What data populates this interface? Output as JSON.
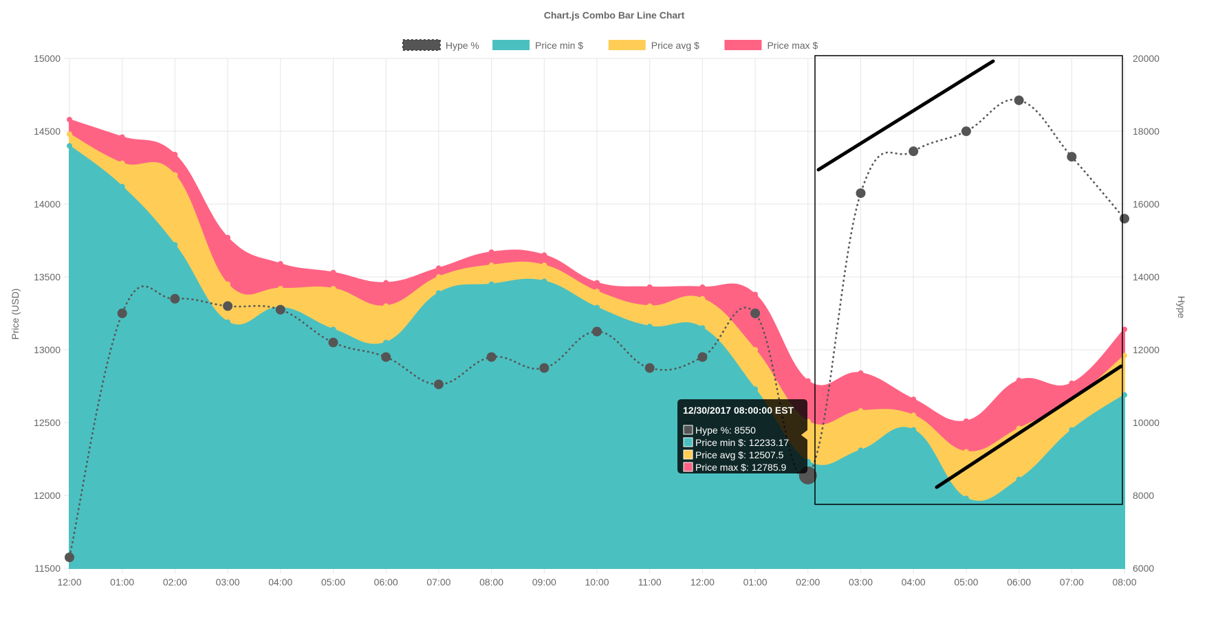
{
  "chart_data": {
    "type": "line",
    "title": "Chart.js Combo Bar Line Chart",
    "categories": [
      "12:00",
      "01:00",
      "02:00",
      "03:00",
      "04:00",
      "05:00",
      "06:00",
      "07:00",
      "08:00",
      "09:00",
      "10:00",
      "11:00",
      "12:00",
      "01:00",
      "02:00",
      "03:00",
      "04:00",
      "05:00",
      "06:00",
      "07:00",
      "08:00"
    ],
    "y_left": {
      "label": "Price (USD)",
      "min": 11500,
      "max": 15000,
      "step": 500
    },
    "y_right": {
      "label": "Hype",
      "min": 6000,
      "max": 20000,
      "step": 2000
    },
    "legend_position": "top",
    "grid": true,
    "series": [
      {
        "name": "Hype %",
        "axis": "right",
        "kind": "dotted-line",
        "color": "#555555",
        "values": [
          6300,
          13000,
          13400,
          13200,
          13100,
          12200,
          11800,
          11050,
          11800,
          11500,
          12500,
          11500,
          11800,
          13000,
          8550,
          16300,
          17450,
          18000,
          18850,
          17300,
          15600
        ]
      },
      {
        "name": "Price min $",
        "axis": "left",
        "kind": "area",
        "color": "#4bc0c0",
        "values": [
          14400,
          14120,
          13720,
          13190,
          13290,
          13140,
          13050,
          13390,
          13450,
          13470,
          13290,
          13160,
          13150,
          12730,
          12233.17,
          12310,
          12450,
          11980,
          12110,
          12450,
          12690
        ]
      },
      {
        "name": "Price avg $",
        "axis": "left",
        "kind": "area",
        "color": "#ffcd56",
        "values": [
          14480,
          14280,
          14200,
          13450,
          13420,
          13420,
          13300,
          13500,
          13580,
          13580,
          13400,
          13300,
          13350,
          13000,
          12507.5,
          12580,
          12550,
          12300,
          12460,
          12650,
          12960
        ]
      },
      {
        "name": "Price max $",
        "axis": "left",
        "kind": "area",
        "color": "#ff6384",
        "values": [
          14580,
          14460,
          14340,
          13770,
          13590,
          13530,
          13460,
          13560,
          13670,
          13650,
          13460,
          13430,
          13430,
          13380,
          12785.9,
          12840,
          12660,
          12510,
          12790,
          12770,
          13140
        ]
      }
    ],
    "tooltip": {
      "title": "12/30/2017 08:00:00 EST",
      "index": 14,
      "lines": [
        "Hype %: 8550",
        "Price min $: 12233.17",
        "Price avg $: 12507.5",
        "Price max $: 12785.9"
      ]
    }
  }
}
